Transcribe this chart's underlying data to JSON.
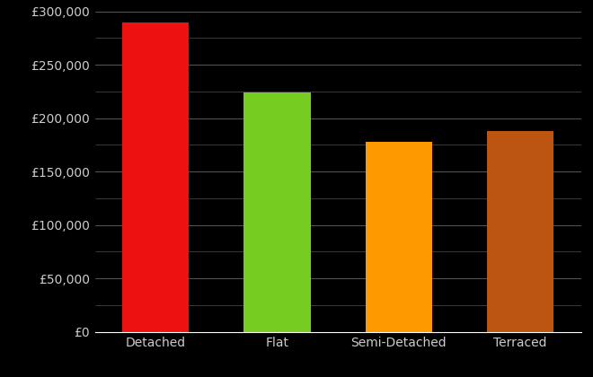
{
  "categories": [
    "Detached",
    "Flat",
    "Semi-Detached",
    "Terraced"
  ],
  "values": [
    290000,
    224000,
    178000,
    188000
  ],
  "bar_colors": [
    "#ee1111",
    "#77cc22",
    "#ff9900",
    "#bb5511"
  ],
  "background_color": "#000000",
  "text_color": "#cccccc",
  "grid_color": "#666666",
  "ylim": [
    0,
    300000
  ],
  "ytick_step": 50000,
  "minor_tick_step": 25000,
  "bar_width": 0.55,
  "figsize": [
    6.6,
    4.2
  ],
  "dpi": 100,
  "font_size_y": 10,
  "font_size_x": 10
}
